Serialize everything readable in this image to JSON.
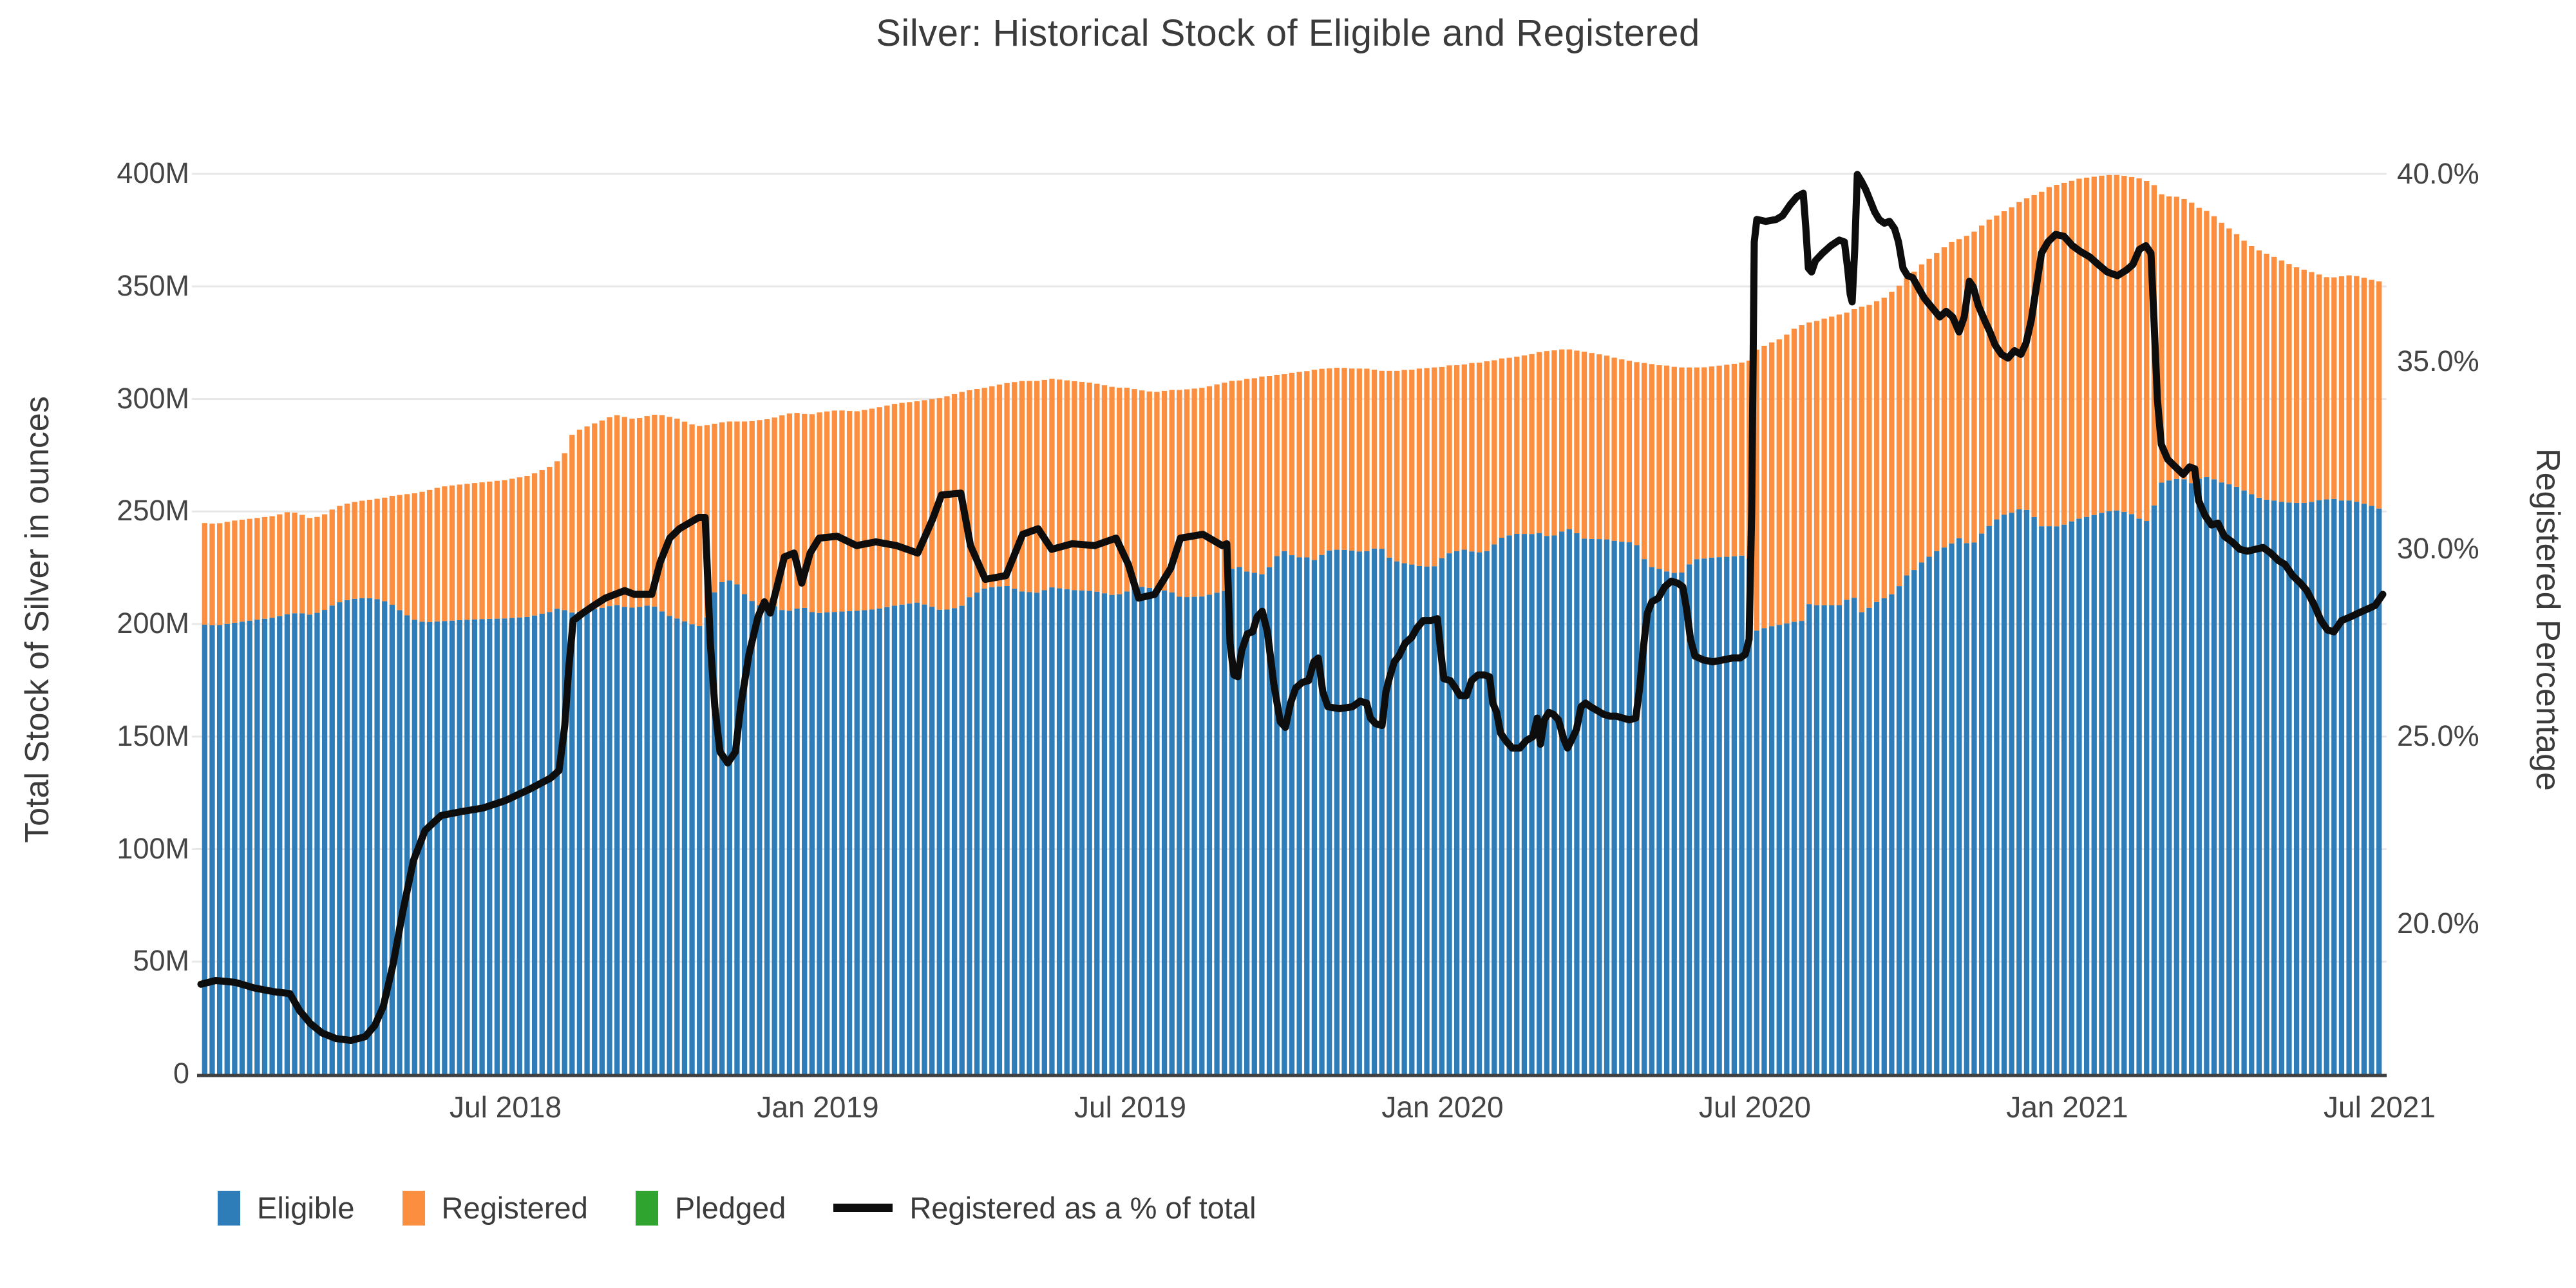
{
  "title": "Silver: Historical Stock of Eligible and Registered",
  "y_axis_left": {
    "title": "Total Stock of Silver in ounces",
    "tick_labels": [
      "0",
      "50M",
      "100M",
      "150M",
      "200M",
      "250M",
      "300M",
      "350M",
      "400M"
    ],
    "tick_values": [
      0,
      50,
      100,
      150,
      200,
      250,
      300,
      350,
      400
    ],
    "range_moz": [
      0,
      405.7
    ]
  },
  "y_axis_right": {
    "title": "Registered Percentage",
    "tick_labels": [
      "20.0%",
      "25.0%",
      "30.0%",
      "35.0%",
      "40.0%"
    ],
    "tick_values": [
      20,
      25,
      30,
      35,
      40
    ],
    "range_pct": [
      16.0,
      40.05
    ]
  },
  "x_axis": {
    "tick_labels": [
      "Jul 2018",
      "Jan 2019",
      "Jul 2019",
      "Jan 2020",
      "Jul 2020",
      "Jan 2021",
      "Jul 2021"
    ]
  },
  "legend": {
    "items": [
      {
        "label": "Eligible",
        "color": "#2f7db8",
        "type": "swatch"
      },
      {
        "label": "Registered",
        "color": "#fb8f3f",
        "type": "swatch"
      },
      {
        "label": "Pledged",
        "color": "#2fa42f",
        "type": "swatch"
      },
      {
        "label": "Registered as a % of total",
        "color": "#0d0d0d",
        "type": "line"
      }
    ]
  },
  "colors": {
    "eligible": "#2f7db8",
    "registered": "#fb8f3f",
    "pledged": "#2fa42f",
    "pct_line": "#0d0d0d",
    "grid": "#e8e8e8",
    "axis_line": "#3f3f3f",
    "text": "#444444"
  },
  "chart_data": {
    "type": "bar+line",
    "title": "Silver: Historical Stock of Eligible and Registered",
    "stacked_bar_series": [
      "Eligible",
      "Registered",
      "Pledged"
    ],
    "line_series": "Registered as a % of total (right axis)",
    "ylabel_left": "Total Stock of Silver in ounces",
    "ylabel_right": "Registered Percentage",
    "ylim_left_moz": [
      0,
      405.7
    ],
    "ylim_right_pct": [
      16.0,
      40.05
    ],
    "note": "Each point: [x_position_px_on_4000px_wide_canvas, total_stock_million_oz, registered_pct_of_total]. Eligible = total*(1-pct/100); Registered = total*pct/100; Pledged is ~0 (legend entry present, bars not visible). Plot x-span 312-3700px maps early Feb 2018 - mid Jul 2021.",
    "points": [
      [
        312,
        245,
        18.4
      ],
      [
        335,
        244.5,
        18.5
      ],
      [
        365,
        246,
        18.45
      ],
      [
        395,
        247,
        18.3
      ],
      [
        425,
        248,
        18.2
      ],
      [
        450,
        250,
        18.15
      ],
      [
        465,
        249,
        17.7
      ],
      [
        482,
        247,
        17.35
      ],
      [
        500,
        248,
        17.1
      ],
      [
        522,
        252,
        16.95
      ],
      [
        545,
        254,
        16.9
      ],
      [
        567,
        255,
        17.0
      ],
      [
        582,
        255.5,
        17.3
      ],
      [
        595,
        256,
        17.8
      ],
      [
        610,
        257,
        18.9
      ],
      [
        625,
        257.5,
        20.3
      ],
      [
        642,
        258,
        21.7
      ],
      [
        660,
        259,
        22.5
      ],
      [
        685,
        261,
        22.9
      ],
      [
        715,
        262,
        23.0
      ],
      [
        750,
        263,
        23.1
      ],
      [
        785,
        264,
        23.3
      ],
      [
        822,
        266,
        23.6
      ],
      [
        855,
        270,
        23.9
      ],
      [
        868,
        273,
        24.1
      ],
      [
        877,
        276,
        25.3
      ],
      [
        883,
        281,
        26.8
      ],
      [
        890,
        285,
        28.1
      ],
      [
        905,
        287,
        28.3
      ],
      [
        922,
        289,
        28.5
      ],
      [
        940,
        291,
        28.7
      ],
      [
        955,
        293,
        28.8
      ],
      [
        970,
        292,
        28.9
      ],
      [
        985,
        291,
        28.8
      ],
      [
        1000,
        292,
        28.8
      ],
      [
        1012,
        293,
        28.8
      ],
      [
        1025,
        293,
        29.65
      ],
      [
        1040,
        292,
        30.3
      ],
      [
        1055,
        291,
        30.55
      ],
      [
        1070,
        289,
        30.7
      ],
      [
        1085,
        288,
        30.85
      ],
      [
        1095,
        288,
        30.85
      ],
      [
        1103,
        289,
        27.5
      ],
      [
        1110,
        289,
        25.8
      ],
      [
        1118,
        289.5,
        24.6
      ],
      [
        1130,
        290,
        24.3
      ],
      [
        1142,
        290,
        24.6
      ],
      [
        1150,
        290,
        25.8
      ],
      [
        1163,
        290,
        27.2
      ],
      [
        1177,
        290.5,
        28.2
      ],
      [
        1187,
        291,
        28.6
      ],
      [
        1196,
        291,
        28.3
      ],
      [
        1205,
        292,
        28.9
      ],
      [
        1218,
        293,
        29.8
      ],
      [
        1233,
        294,
        29.9
      ],
      [
        1245,
        293.5,
        29.1
      ],
      [
        1258,
        293,
        29.9
      ],
      [
        1272,
        294,
        30.3
      ],
      [
        1300,
        295,
        30.35
      ],
      [
        1330,
        294.5,
        30.1
      ],
      [
        1360,
        296,
        30.2
      ],
      [
        1392,
        298,
        30.1
      ],
      [
        1425,
        299,
        29.9
      ],
      [
        1448,
        300,
        30.8
      ],
      [
        1462,
        300.5,
        31.45
      ],
      [
        1492,
        303,
        31.5
      ],
      [
        1507,
        304,
        30.1
      ],
      [
        1530,
        305,
        29.2
      ],
      [
        1562,
        307,
        29.3
      ],
      [
        1588,
        308,
        30.4
      ],
      [
        1612,
        308,
        30.55
      ],
      [
        1633,
        309,
        30.0
      ],
      [
        1665,
        308,
        30.15
      ],
      [
        1700,
        307,
        30.1
      ],
      [
        1733,
        305,
        30.3
      ],
      [
        1752,
        305,
        29.6
      ],
      [
        1768,
        304,
        28.7
      ],
      [
        1793,
        303,
        28.8
      ],
      [
        1818,
        304,
        29.5
      ],
      [
        1833,
        304,
        30.3
      ],
      [
        1868,
        305,
        30.4
      ],
      [
        1898,
        307,
        30.1
      ],
      [
        1905,
        307.5,
        30.15
      ],
      [
        1910,
        308,
        27.5
      ],
      [
        1916,
        308,
        26.65
      ],
      [
        1922,
        308,
        26.6
      ],
      [
        1928,
        308.5,
        27.3
      ],
      [
        1937,
        309,
        27.75
      ],
      [
        1945,
        309,
        27.8
      ],
      [
        1952,
        309.5,
        28.2
      ],
      [
        1960,
        310,
        28.35
      ],
      [
        1968,
        310,
        27.8
      ],
      [
        1978,
        310.5,
        26.4
      ],
      [
        1988,
        311,
        25.4
      ],
      [
        1996,
        311,
        25.25
      ],
      [
        2004,
        311.5,
        25.9
      ],
      [
        2012,
        312,
        26.3
      ],
      [
        2022,
        312,
        26.45
      ],
      [
        2032,
        312.5,
        26.5
      ],
      [
        2040,
        313,
        27.0
      ],
      [
        2047,
        313,
        27.1
      ],
      [
        2054,
        313.5,
        26.2
      ],
      [
        2062,
        313.5,
        25.8
      ],
      [
        2080,
        314,
        25.75
      ],
      [
        2100,
        313.5,
        25.8
      ],
      [
        2112,
        313.5,
        25.95
      ],
      [
        2122,
        313.5,
        25.9
      ],
      [
        2128,
        313,
        25.5
      ],
      [
        2136,
        313,
        25.35
      ],
      [
        2146,
        312.5,
        25.3
      ],
      [
        2152,
        312.5,
        26.2
      ],
      [
        2158,
        312.5,
        26.6
      ],
      [
        2165,
        312.5,
        27.0
      ],
      [
        2172,
        312.5,
        27.15
      ],
      [
        2182,
        313,
        27.5
      ],
      [
        2192,
        313,
        27.65
      ],
      [
        2200,
        313.5,
        27.9
      ],
      [
        2210,
        313.5,
        28.1
      ],
      [
        2222,
        314,
        28.1
      ],
      [
        2232,
        314,
        28.15
      ],
      [
        2237,
        314,
        27.3
      ],
      [
        2242,
        314.5,
        26.55
      ],
      [
        2252,
        315,
        26.5
      ],
      [
        2260,
        315,
        26.3
      ],
      [
        2267,
        315,
        26.1
      ],
      [
        2277,
        315.5,
        26.1
      ],
      [
        2285,
        316,
        26.5
      ],
      [
        2295,
        316,
        26.65
      ],
      [
        2305,
        316.5,
        26.65
      ],
      [
        2313,
        317,
        26.6
      ],
      [
        2318,
        317,
        25.9
      ],
      [
        2324,
        317.5,
        25.65
      ],
      [
        2330,
        318,
        25.1
      ],
      [
        2338,
        318,
        24.9
      ],
      [
        2348,
        318.5,
        24.7
      ],
      [
        2360,
        319,
        24.7
      ],
      [
        2370,
        319.5,
        24.9
      ],
      [
        2380,
        320,
        25.0
      ],
      [
        2387,
        320.5,
        25.5
      ],
      [
        2392,
        321,
        24.8
      ],
      [
        2398,
        321,
        25.45
      ],
      [
        2405,
        321.5,
        25.65
      ],
      [
        2412,
        321.5,
        25.6
      ],
      [
        2420,
        322,
        25.45
      ],
      [
        2428,
        322,
        24.95
      ],
      [
        2434,
        322,
        24.7
      ],
      [
        2440,
        322,
        24.9
      ],
      [
        2448,
        321.5,
        25.2
      ],
      [
        2455,
        321,
        25.8
      ],
      [
        2462,
        321,
        25.9
      ],
      [
        2470,
        320.5,
        25.8
      ],
      [
        2480,
        320,
        25.7
      ],
      [
        2490,
        319.5,
        25.6
      ],
      [
        2500,
        319,
        25.55
      ],
      [
        2510,
        318,
        25.55
      ],
      [
        2520,
        317.5,
        25.5
      ],
      [
        2530,
        317,
        25.45
      ],
      [
        2540,
        316.5,
        25.5
      ],
      [
        2546,
        316,
        26.3
      ],
      [
        2552,
        316,
        27.4
      ],
      [
        2558,
        316,
        28.3
      ],
      [
        2565,
        315.5,
        28.6
      ],
      [
        2575,
        315,
        28.7
      ],
      [
        2585,
        315,
        29.0
      ],
      [
        2595,
        314.5,
        29.15
      ],
      [
        2605,
        314,
        29.1
      ],
      [
        2613,
        314,
        29.0
      ],
      [
        2619,
        314,
        28.4
      ],
      [
        2625,
        314,
        27.6
      ],
      [
        2632,
        314,
        27.15
      ],
      [
        2645,
        314,
        27.05
      ],
      [
        2660,
        314.5,
        27.0
      ],
      [
        2675,
        315,
        27.05
      ],
      [
        2690,
        315.5,
        27.1
      ],
      [
        2702,
        316,
        27.1
      ],
      [
        2710,
        316.5,
        27.2
      ],
      [
        2716,
        317,
        27.6
      ],
      [
        2720,
        318,
        31.0
      ],
      [
        2724,
        320,
        38.2
      ],
      [
        2728,
        322,
        38.8
      ],
      [
        2742,
        324,
        38.75
      ],
      [
        2758,
        326,
        38.8
      ],
      [
        2768,
        327,
        38.9
      ],
      [
        2780,
        330,
        39.2
      ],
      [
        2790,
        332,
        39.4
      ],
      [
        2800,
        333,
        39.5
      ],
      [
        2804,
        333.5,
        38.6
      ],
      [
        2808,
        334,
        37.5
      ],
      [
        2813,
        334,
        37.4
      ],
      [
        2819,
        334.5,
        37.7
      ],
      [
        2830,
        335.5,
        37.9
      ],
      [
        2843,
        336.5,
        38.1
      ],
      [
        2856,
        337.5,
        38.25
      ],
      [
        2864,
        338,
        38.2
      ],
      [
        2869,
        338.5,
        37.5
      ],
      [
        2873,
        339,
        36.8
      ],
      [
        2876,
        339.5,
        36.6
      ],
      [
        2880,
        340,
        38.0
      ],
      [
        2884,
        340,
        40.0
      ],
      [
        2891,
        341,
        39.8
      ],
      [
        2897,
        341,
        39.6
      ],
      [
        2904,
        342,
        39.3
      ],
      [
        2911,
        343,
        39.0
      ],
      [
        2918,
        344,
        38.8
      ],
      [
        2926,
        345,
        38.7
      ],
      [
        2934,
        347,
        38.75
      ],
      [
        2942,
        348.5,
        38.55
      ],
      [
        2948,
        350,
        38.2
      ],
      [
        2955,
        352,
        37.5
      ],
      [
        2962,
        354,
        37.3
      ],
      [
        2970,
        356,
        37.25
      ],
      [
        2978,
        358,
        37.0
      ],
      [
        2988,
        361,
        36.7
      ],
      [
        3000,
        363,
        36.45
      ],
      [
        3012,
        366,
        36.2
      ],
      [
        3022,
        368,
        36.35
      ],
      [
        3032,
        370,
        36.2
      ],
      [
        3042,
        371,
        35.8
      ],
      [
        3050,
        372,
        36.2
      ],
      [
        3058,
        373,
        37.15
      ],
      [
        3064,
        374,
        37.0
      ],
      [
        3072,
        376,
        36.5
      ],
      [
        3082,
        378,
        36.1
      ],
      [
        3090,
        380,
        35.8
      ],
      [
        3098,
        381,
        35.45
      ],
      [
        3108,
        383,
        35.2
      ],
      [
        3118,
        384,
        35.1
      ],
      [
        3128,
        386,
        35.3
      ],
      [
        3138,
        388,
        35.2
      ],
      [
        3146,
        389,
        35.5
      ],
      [
        3154,
        390,
        36.1
      ],
      [
        3162,
        391,
        37.0
      ],
      [
        3170,
        392,
        37.9
      ],
      [
        3180,
        394,
        38.2
      ],
      [
        3192,
        395,
        38.4
      ],
      [
        3205,
        396,
        38.35
      ],
      [
        3218,
        397,
        38.1
      ],
      [
        3230,
        398,
        37.95
      ],
      [
        3245,
        398.5,
        37.8
      ],
      [
        3258,
        399,
        37.6
      ],
      [
        3272,
        399.5,
        37.4
      ],
      [
        3288,
        399.5,
        37.3
      ],
      [
        3302,
        399,
        37.45
      ],
      [
        3312,
        398.5,
        37.6
      ],
      [
        3322,
        398,
        38.0
      ],
      [
        3332,
        397,
        38.1
      ],
      [
        3340,
        396,
        37.9
      ],
      [
        3345,
        395,
        36.0
      ],
      [
        3350,
        393,
        34.0
      ],
      [
        3356,
        391,
        32.8
      ],
      [
        3366,
        390,
        32.4
      ],
      [
        3378,
        390,
        32.2
      ],
      [
        3390,
        389,
        32.0
      ],
      [
        3400,
        388,
        32.2
      ],
      [
        3408,
        386,
        32.15
      ],
      [
        3414,
        385,
        31.3
      ],
      [
        3424,
        384,
        30.9
      ],
      [
        3434,
        382,
        30.65
      ],
      [
        3444,
        380,
        30.7
      ],
      [
        3454,
        377,
        30.35
      ],
      [
        3466,
        375,
        30.2
      ],
      [
        3478,
        372,
        30.0
      ],
      [
        3490,
        369,
        29.95
      ],
      [
        3502,
        367,
        30.0
      ],
      [
        3514,
        365,
        30.05
      ],
      [
        3526,
        364,
        29.9
      ],
      [
        3538,
        362,
        29.7
      ],
      [
        3548,
        361,
        29.6
      ],
      [
        3560,
        359,
        29.3
      ],
      [
        3572,
        358,
        29.1
      ],
      [
        3582,
        357,
        28.9
      ],
      [
        3594,
        356,
        28.5
      ],
      [
        3604,
        355,
        28.1
      ],
      [
        3614,
        354,
        27.85
      ],
      [
        3624,
        354,
        27.8
      ],
      [
        3636,
        354.5,
        28.1
      ],
      [
        3650,
        355,
        28.2
      ],
      [
        3662,
        354.5,
        28.3
      ],
      [
        3675,
        353.5,
        28.4
      ],
      [
        3688,
        352.5,
        28.5
      ],
      [
        3700,
        352,
        28.8
      ]
    ]
  }
}
